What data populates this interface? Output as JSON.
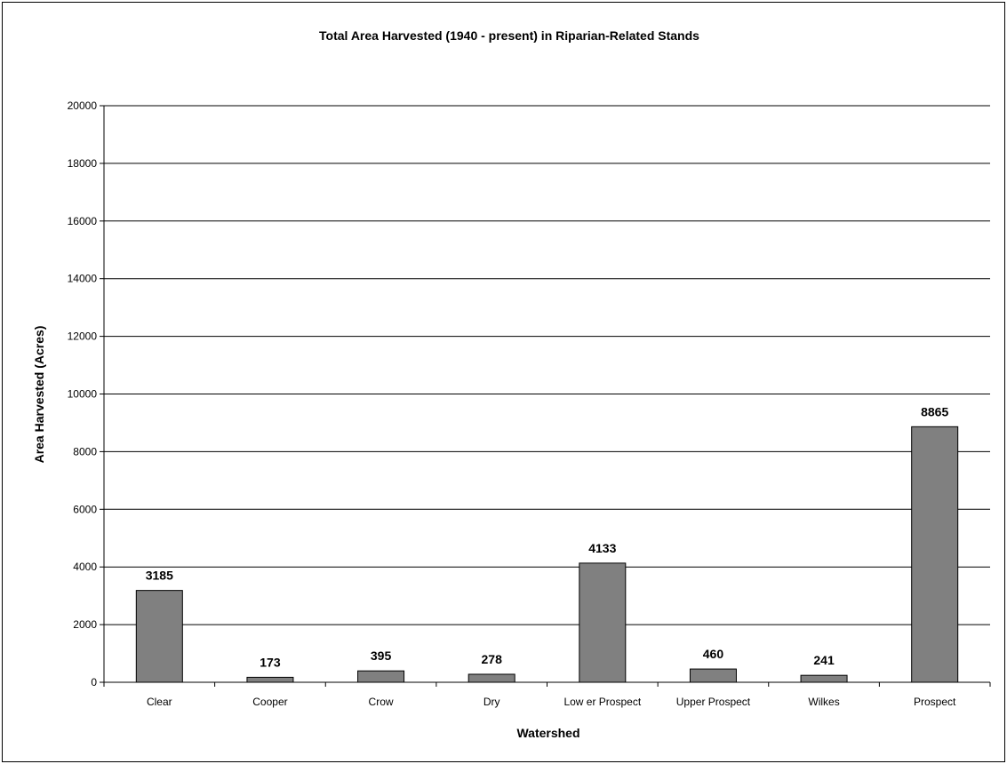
{
  "chart_data": {
    "type": "bar",
    "title": "Total Area Harvested (1940 - present) in Riparian-Related Stands",
    "xlabel": "Watershed",
    "ylabel": "Area Harvested (Acres)",
    "categories": [
      "Clear",
      "Cooper",
      "Crow",
      "Dry",
      "Low er Prospect",
      "Upper Prospect",
      "Wilkes",
      "Prospect"
    ],
    "values": [
      3185,
      173,
      395,
      278,
      4133,
      460,
      241,
      8865
    ],
    "data_labels": [
      "3185",
      "173",
      "395",
      "278",
      "4133",
      "460",
      "241",
      "8865"
    ],
    "ylim": [
      0,
      20000
    ],
    "yticks": [
      0,
      2000,
      4000,
      6000,
      8000,
      10000,
      12000,
      14000,
      16000,
      18000,
      20000
    ],
    "ytick_labels": [
      "0",
      "2000",
      "4000",
      "6000",
      "8000",
      "10000",
      "12000",
      "14000",
      "16000",
      "18000",
      "20000"
    ],
    "grid": true,
    "legend": "none",
    "bar_color": "#808080"
  }
}
